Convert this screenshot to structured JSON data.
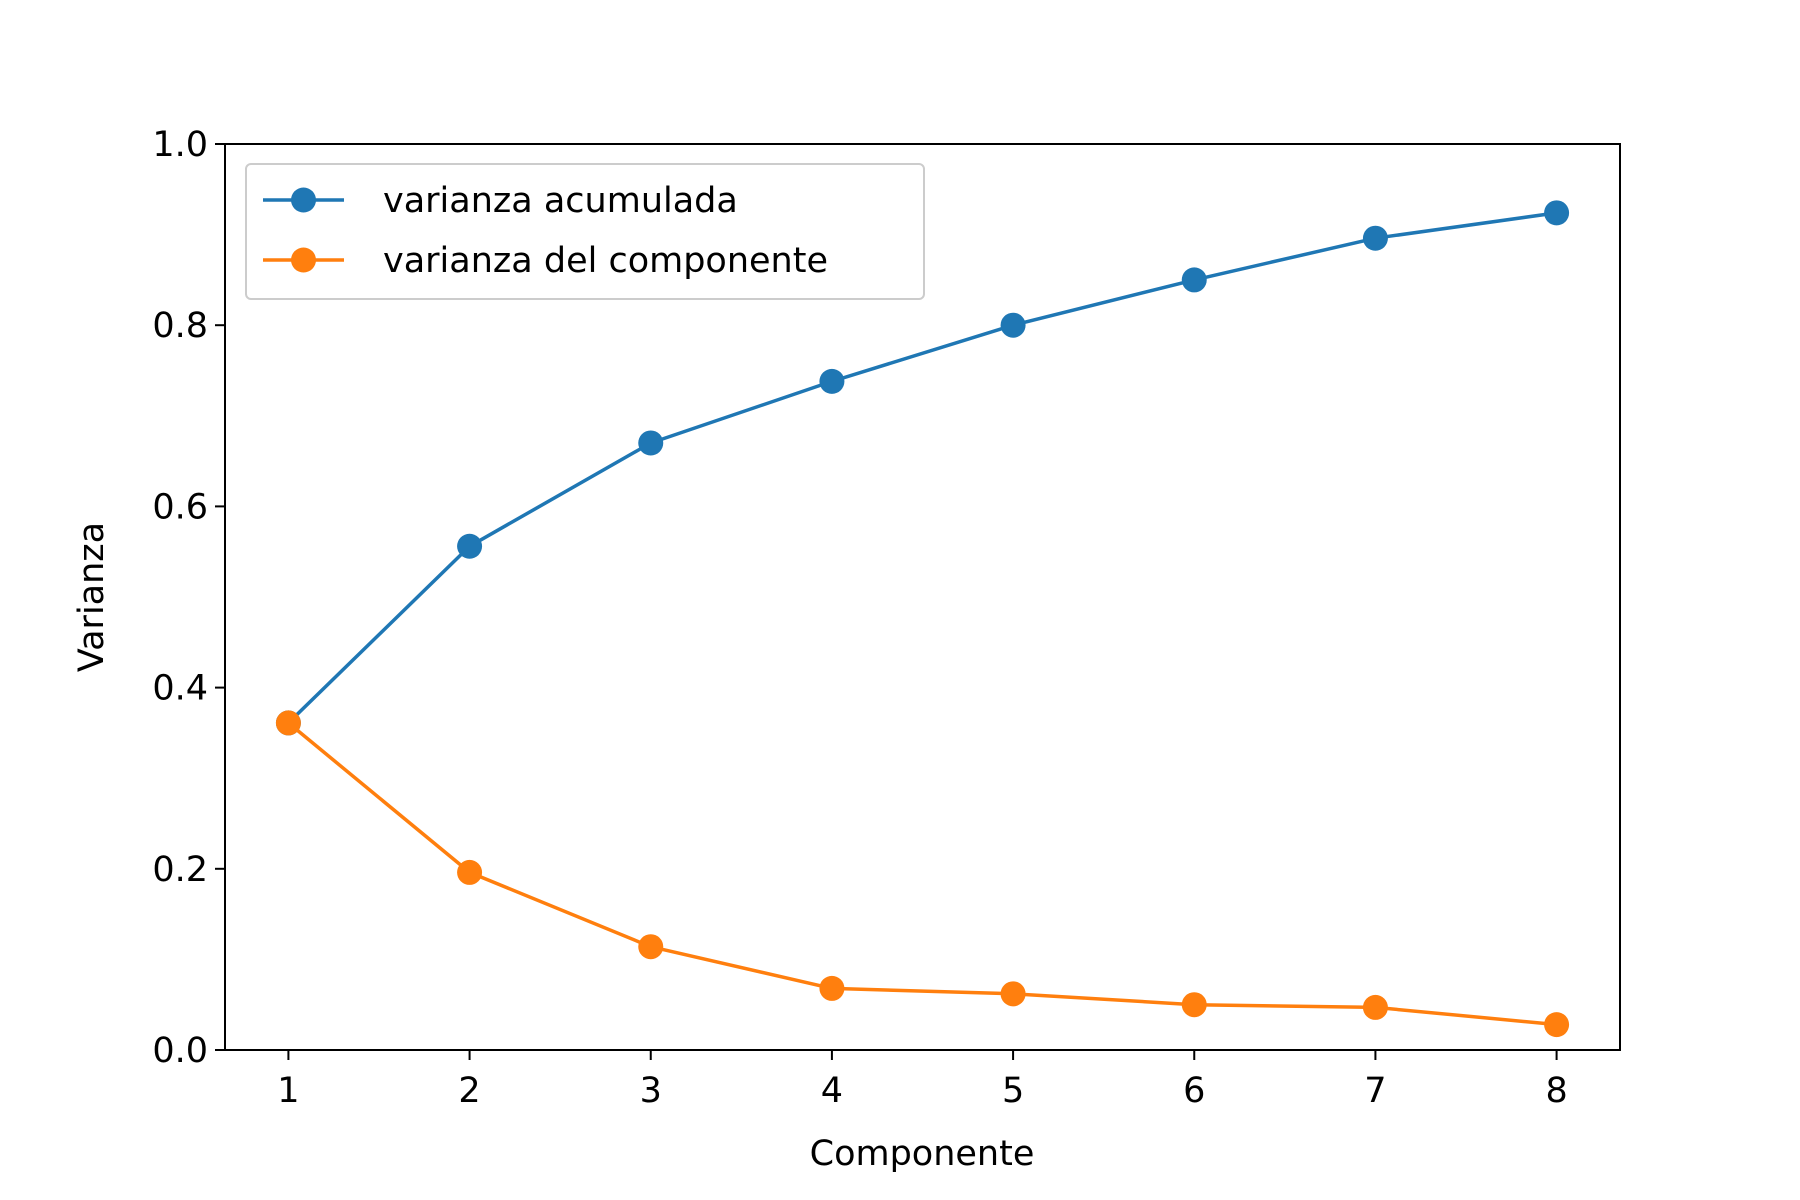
{
  "chart_data": {
    "type": "line",
    "title": "",
    "xlabel": "Componente",
    "ylabel": "Varianza",
    "x": [
      1,
      2,
      3,
      4,
      5,
      6,
      7,
      8
    ],
    "xlim": [
      0.65,
      8.35
    ],
    "ylim": [
      0.0,
      1.0
    ],
    "xticks": [
      "1",
      "2",
      "3",
      "4",
      "5",
      "6",
      "7",
      "8"
    ],
    "yticks": [
      "0.0",
      "0.2",
      "0.4",
      "0.6",
      "0.8",
      "1.0"
    ],
    "grid": false,
    "legend_position": "top-left",
    "markers": true,
    "series": [
      {
        "name": "varianza acumulada",
        "color": "#1f77b4",
        "values": [
          0.361,
          0.556,
          0.67,
          0.738,
          0.8,
          0.85,
          0.896,
          0.924
        ]
      },
      {
        "name": "varianza del componente",
        "color": "#ff7f0e",
        "values": [
          0.361,
          0.196,
          0.114,
          0.068,
          0.062,
          0.05,
          0.047,
          0.028
        ]
      }
    ]
  }
}
